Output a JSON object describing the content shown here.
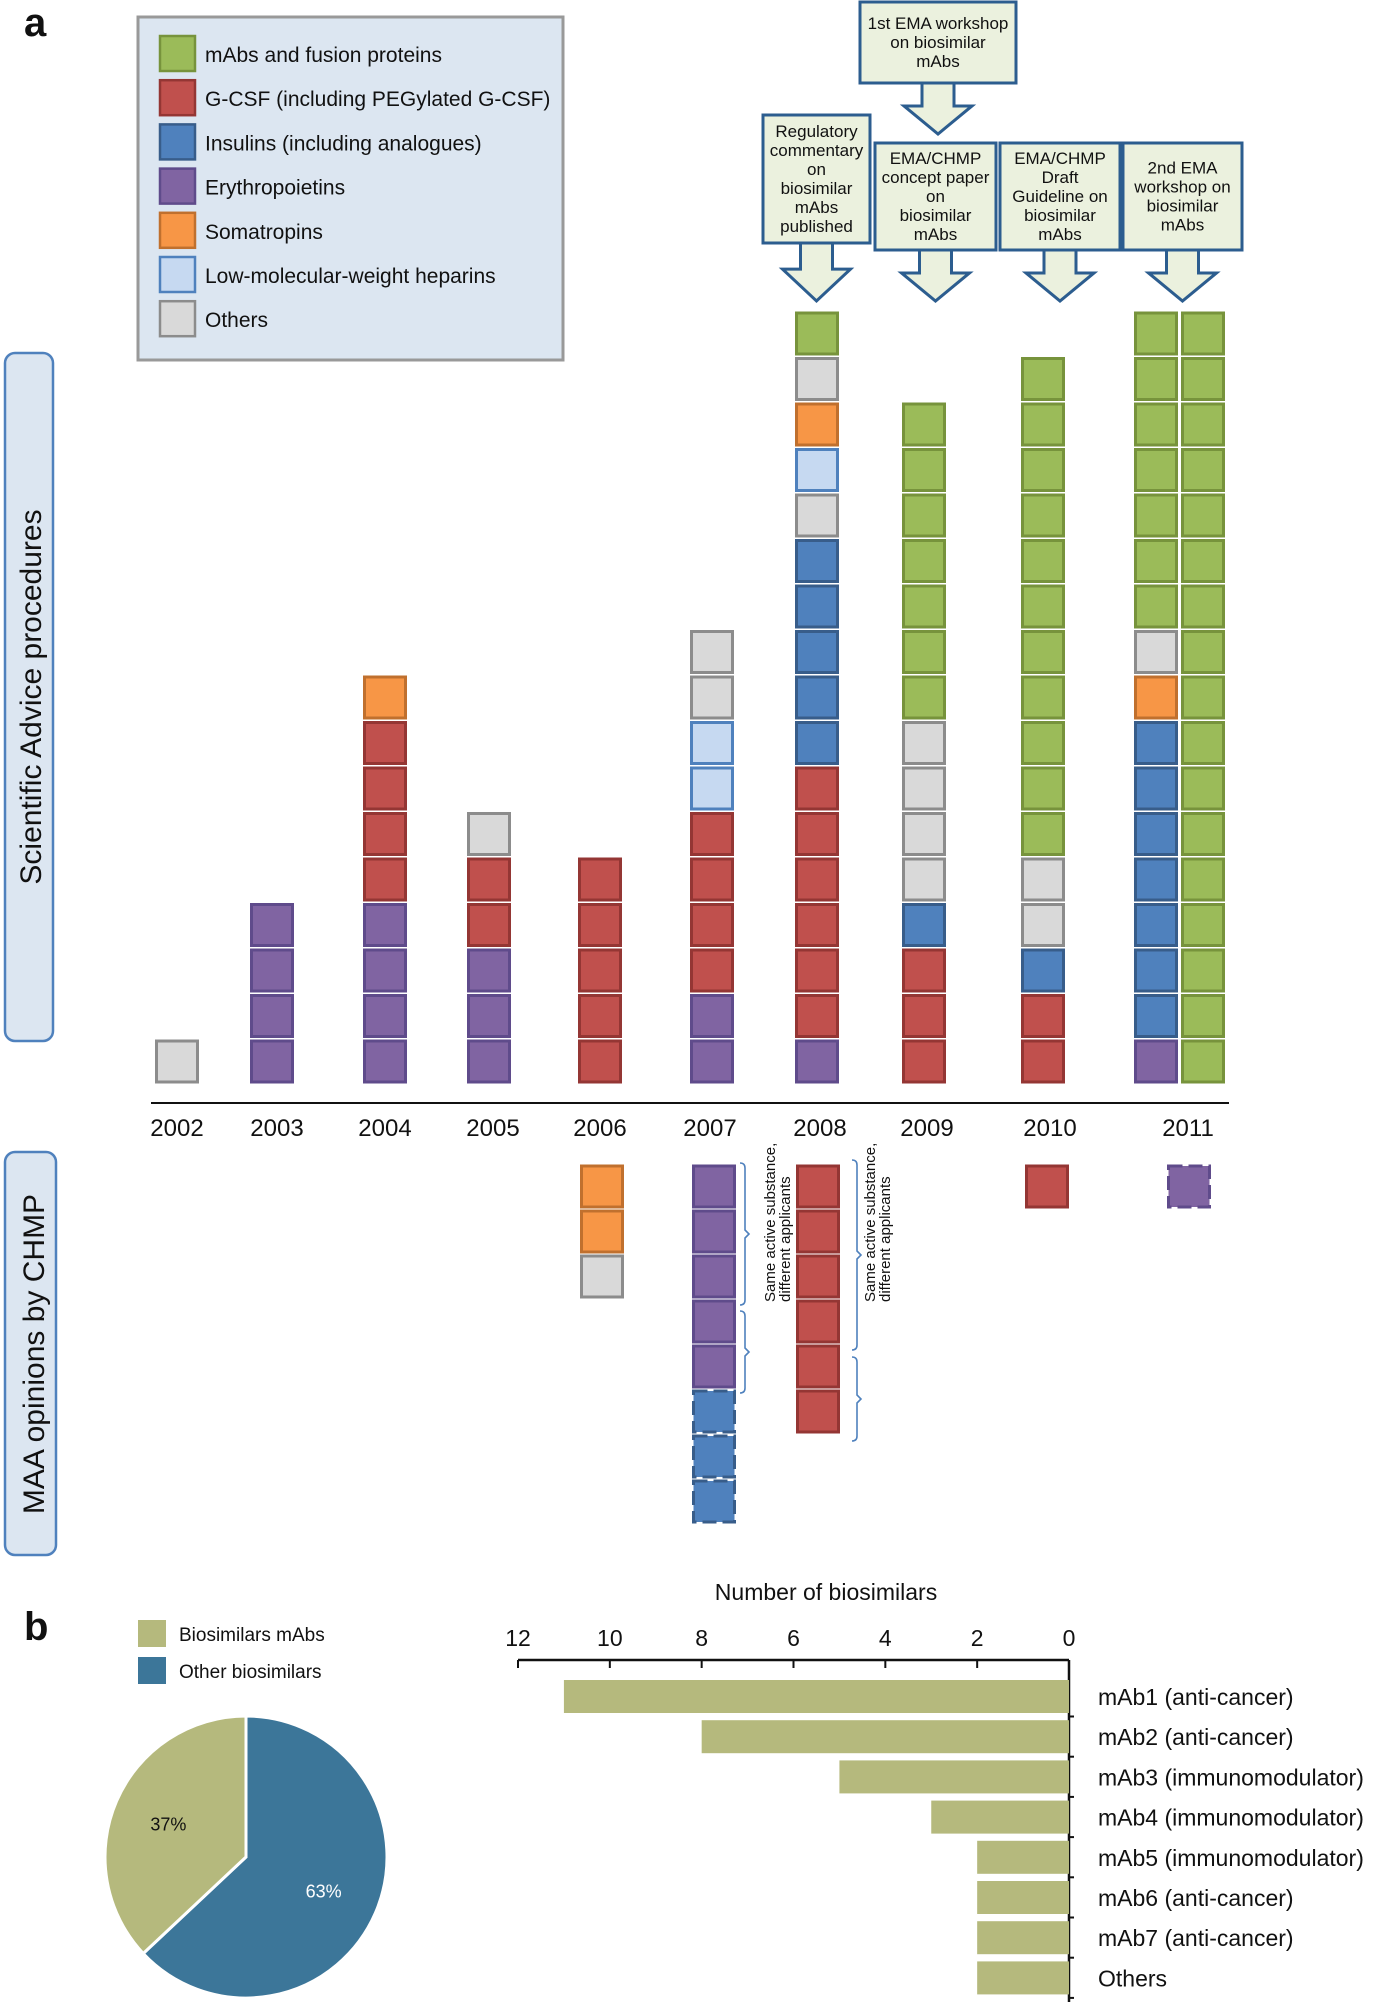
{
  "panel_labels": {
    "a": "a",
    "b": "b"
  },
  "colors": {
    "mabs": "#9bbb59",
    "gcsf": "#c0504d",
    "insulin": "#4f81bd",
    "epo": "#8064a2",
    "somat": "#f79646",
    "lmwh": "#c6d9f1",
    "others": "#d9d9d9",
    "pie_mabs": "#b5b97d",
    "pie_other": "#3c7699",
    "bar": "#b5b97d",
    "legend_bg": "#dce6f1",
    "box_bg": "#ebf1de",
    "box_border": "#2c5d8f"
  },
  "legend": [
    {
      "key": "mabs",
      "label": "mAbs and fusion proteins"
    },
    {
      "key": "gcsf",
      "label": "G-CSF (including PEGylated G-CSF)"
    },
    {
      "key": "insulin",
      "label": "Insulins (including analogues)"
    },
    {
      "key": "epo",
      "label": "Erythropoietins"
    },
    {
      "key": "somat",
      "label": "Somatropins"
    },
    {
      "key": "lmwh",
      "label": "Low-molecular-weight heparins"
    },
    {
      "key": "others",
      "label": "Others"
    }
  ],
  "chart_data": [
    {
      "type": "bar",
      "subtype": "stacked-squares",
      "ylabel_top": "Scientific Advice procedures",
      "ylabel_bottom": "MAA opinions by CHMP",
      "years": [
        "2002",
        "2003",
        "2004",
        "2005",
        "2006",
        "2007",
        "2008",
        "2009",
        "2010",
        "2011"
      ],
      "scientific_advice": [
        {
          "year": "2002",
          "stack": [
            "others"
          ]
        },
        {
          "year": "2003",
          "stack": [
            "epo",
            "epo",
            "epo",
            "epo"
          ]
        },
        {
          "year": "2004",
          "stack": [
            "epo",
            "epo",
            "epo",
            "epo",
            "gcsf",
            "gcsf",
            "gcsf",
            "gcsf",
            "somat"
          ]
        },
        {
          "year": "2005",
          "stack": [
            "epo",
            "epo",
            "epo",
            "gcsf",
            "gcsf",
            "others"
          ]
        },
        {
          "year": "2006",
          "stack": [
            "gcsf",
            "gcsf",
            "gcsf",
            "gcsf",
            "gcsf"
          ]
        },
        {
          "year": "2007",
          "stack": [
            "epo",
            "epo",
            "gcsf",
            "gcsf",
            "gcsf",
            "gcsf",
            "lmwh",
            "lmwh",
            "others",
            "others"
          ]
        },
        {
          "year": "2008",
          "stack": [
            "epo",
            "gcsf",
            "gcsf",
            "gcsf",
            "gcsf",
            "gcsf",
            "gcsf",
            "insulin",
            "insulin",
            "insulin",
            "insulin",
            "insulin",
            "others",
            "lmwh",
            "somat",
            "others",
            "mabs"
          ]
        },
        {
          "year": "2009",
          "stack": [
            "gcsf",
            "gcsf",
            "gcsf",
            "insulin",
            "others",
            "others",
            "others",
            "others",
            "mabs",
            "mabs",
            "mabs",
            "mabs",
            "mabs",
            "mabs",
            "mabs"
          ]
        },
        {
          "year": "2010",
          "stack": [
            "gcsf",
            "gcsf",
            "insulin",
            "others",
            "others",
            "mabs",
            "mabs",
            "mabs",
            "mabs",
            "mabs",
            "mabs",
            "mabs",
            "mabs",
            "mabs",
            "mabs",
            "mabs"
          ]
        },
        {
          "year": "2011",
          "stack": [
            "epo",
            "insulin",
            "insulin",
            "insulin",
            "insulin",
            "insulin",
            "insulin",
            "insulin",
            "somat",
            "others",
            "mabs",
            "mabs",
            "mabs",
            "mabs",
            "mabs",
            "mabs",
            "mabs"
          ]
        },
        {
          "year": "2011",
          "stack": [
            "mabs",
            "mabs",
            "mabs",
            "mabs",
            "mabs",
            "mabs",
            "mabs",
            "mabs",
            "mabs",
            "mabs",
            "mabs",
            "mabs",
            "mabs",
            "mabs",
            "mabs",
            "mabs",
            "mabs"
          ]
        }
      ],
      "maa_opinions": [
        {
          "year": "2006",
          "stack": [
            {
              "k": "somat"
            },
            {
              "k": "somat"
            },
            {
              "k": "others"
            }
          ]
        },
        {
          "year": "2007",
          "stack": [
            {
              "k": "epo"
            },
            {
              "k": "epo"
            },
            {
              "k": "epo"
            },
            {
              "k": "epo"
            },
            {
              "k": "epo"
            },
            {
              "k": "insulin",
              "dashed": true
            },
            {
              "k": "insulin",
              "dashed": true
            },
            {
              "k": "insulin",
              "dashed": true
            }
          ]
        },
        {
          "year": "2008",
          "stack": [
            {
              "k": "gcsf"
            },
            {
              "k": "gcsf"
            },
            {
              "k": "gcsf"
            },
            {
              "k": "gcsf"
            },
            {
              "k": "gcsf"
            },
            {
              "k": "gcsf"
            }
          ]
        },
        {
          "year": "2010",
          "stack": [
            {
              "k": "gcsf"
            }
          ]
        },
        {
          "year": "2011",
          "stack": [
            {
              "k": "epo",
              "dashed": true
            }
          ]
        }
      ],
      "bracket_note": [
        "Same active substance,",
        "different applicants"
      ],
      "callouts": [
        {
          "year": "2008",
          "lines": [
            "Regulatory",
            "commentary",
            "on",
            "biosimilar",
            "mAbs",
            "published"
          ]
        },
        {
          "year": "2009",
          "lines": [
            "EMA/CHMP",
            "concept paper",
            "on",
            "biosimilar",
            "mAbs"
          ]
        },
        {
          "year": "2009",
          "lines": [
            "1st EMA workshop",
            "on biosimilar",
            "mAbs"
          ]
        },
        {
          "year": "2010",
          "lines": [
            "EMA/CHMP",
            "Draft",
            "Guideline on",
            "biosimilar",
            "mAbs"
          ]
        },
        {
          "year": "2011",
          "lines": [
            "2nd EMA",
            "workshop on",
            "biosimilar",
            "mAbs"
          ]
        }
      ]
    },
    {
      "type": "pie",
      "legend": [
        "Biosimilars mAbs",
        "Other biosimilars"
      ],
      "values": [
        37,
        63
      ],
      "labels": [
        "37%",
        "63%"
      ]
    },
    {
      "type": "bar",
      "orientation": "horizontal-reversed",
      "xlabel": "Number of biosimilars",
      "xlim": [
        0,
        12
      ],
      "ticks": [
        "12",
        "10",
        "8",
        "6",
        "4",
        "2",
        "0"
      ],
      "categories": [
        "mAb1 (anti-cancer)",
        "mAb2 (anti-cancer)",
        "mAb3 (immunomodulator)",
        "mAb4 (immunomodulator)",
        "mAb5 (immunomodulator)",
        "mAb6 (anti-cancer)",
        "mAb7 (anti-cancer)",
        "Others"
      ],
      "values": [
        11,
        8,
        5,
        3,
        2,
        2,
        2,
        2
      ]
    }
  ]
}
